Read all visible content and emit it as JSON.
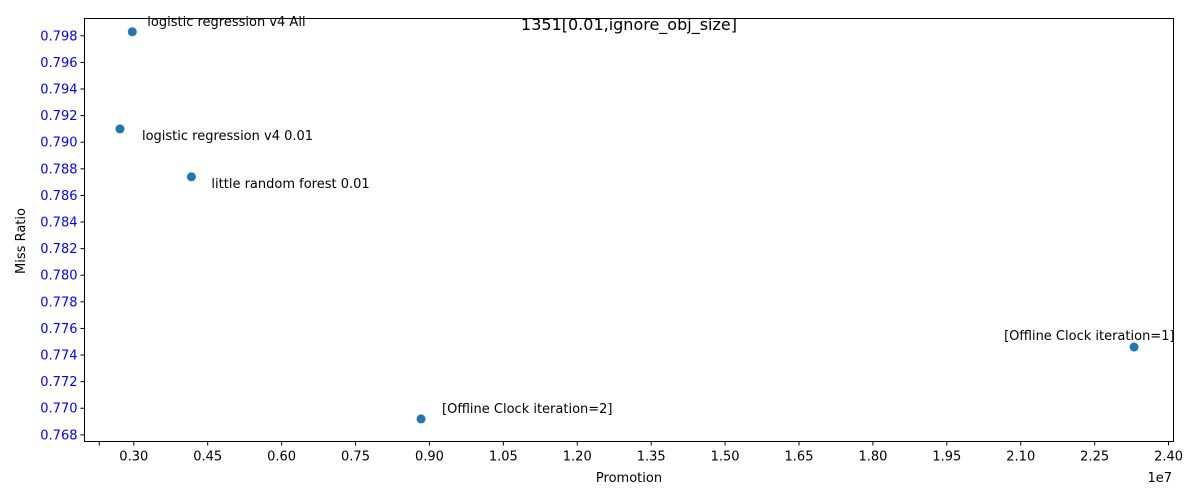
{
  "chart_data": {
    "type": "scatter",
    "title": "1351[0.01,ignore_obj_size]",
    "xlabel": "Promotion",
    "ylabel": "Miss Ratio",
    "x_offset_label": "1e7",
    "xlim": [
      2000000,
      24100000
    ],
    "ylim": [
      0.7675,
      0.7993
    ],
    "x_ticks": [
      2300000,
      3000000,
      4500000,
      6000000,
      7500000,
      9000000,
      10500000,
      12000000,
      13500000,
      15000000,
      16500000,
      18000000,
      19500000,
      21000000,
      22500000,
      24000000
    ],
    "x_tick_labels": [
      "",
      "0.30",
      "0.45",
      "0.60",
      "0.75",
      "0.90",
      "1.05",
      "1.20",
      "1.35",
      "1.50",
      "1.65",
      "1.80",
      "1.95",
      "2.10",
      "2.25",
      "2.40"
    ],
    "y_ticks": [
      0.768,
      0.77,
      0.772,
      0.774,
      0.776,
      0.778,
      0.78,
      0.782,
      0.784,
      0.786,
      0.788,
      0.79,
      0.792,
      0.794,
      0.796,
      0.798
    ],
    "y_tick_labels": [
      "0.768",
      "0.770",
      "0.772",
      "0.774",
      "0.776",
      "0.778",
      "0.780",
      "0.782",
      "0.784",
      "0.786",
      "0.788",
      "0.790",
      "0.792",
      "0.794",
      "0.796",
      "0.798"
    ],
    "grid": false,
    "colors": {
      "marker": "#1f77b4",
      "ytick_text": "#0000ff",
      "axis": "#000000"
    },
    "points": [
      {
        "x": 2970000,
        "y": 0.7983,
        "label": "logistic regression v4 All"
      },
      {
        "x": 2720000,
        "y": 0.791,
        "label": "logistic regression v4 0.01"
      },
      {
        "x": 4170000,
        "y": 0.7874,
        "label": "little random forest 0.01"
      },
      {
        "x": 23300000,
        "y": 0.7746,
        "label": "[Offline Clock iteration=1]"
      },
      {
        "x": 8830000,
        "y": 0.7692,
        "label": "[Offline Clock iteration=2]"
      }
    ]
  }
}
